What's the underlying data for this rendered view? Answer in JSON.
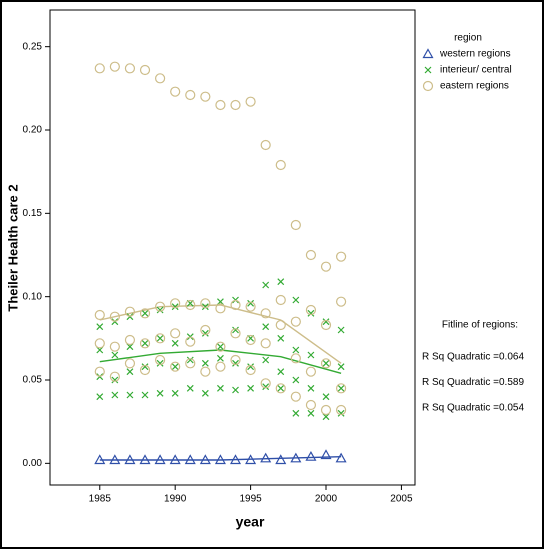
{
  "chart_data": {
    "type": "scatter",
    "x_label": "year",
    "y_label": "Theiler Health care 2",
    "xlim": [
      1981.7,
      2005.9
    ],
    "ylim": [
      -0.013,
      0.272
    ],
    "xticks": [
      1985,
      1990,
      1995,
      2000,
      2005
    ],
    "yticks": [
      {
        "value": 0,
        "label": "0.00"
      },
      {
        "value": 0.05,
        "label": "0.05"
      },
      {
        "value": 0.1,
        "label": "0.10"
      },
      {
        "value": 0.15,
        "label": "0.15"
      },
      {
        "value": 0.2,
        "label": "0.20"
      },
      {
        "value": 0.25,
        "label": "0.25"
      }
    ],
    "legend_title": "region",
    "series": [
      {
        "name": "western regions",
        "color": "#2f4fa8",
        "marker": "triangle",
        "x": [
          1985,
          1986,
          1987,
          1988,
          1989,
          1990,
          1991,
          1992,
          1993,
          1994,
          1995,
          1996,
          1997,
          1998,
          1999,
          2000,
          2001
        ],
        "values": [
          0.002,
          0.002,
          0.002,
          0.002,
          0.002,
          0.002,
          0.002,
          0.002,
          0.002,
          0.002,
          0.002,
          0.003,
          0.002,
          0.003,
          0.004,
          0.005,
          0.003
        ]
      },
      {
        "name": "interieur/ central",
        "color": "#33aa33",
        "marker": "x",
        "x": [
          1985,
          1985,
          1985,
          1985,
          1986,
          1986,
          1986,
          1986,
          1987,
          1987,
          1987,
          1987,
          1988,
          1988,
          1988,
          1988,
          1989,
          1989,
          1989,
          1989,
          1990,
          1990,
          1990,
          1990,
          1991,
          1991,
          1991,
          1991,
          1992,
          1992,
          1992,
          1992,
          1993,
          1993,
          1993,
          1993,
          1994,
          1994,
          1994,
          1994,
          1995,
          1995,
          1995,
          1995,
          1996,
          1996,
          1996,
          1996,
          1997,
          1997,
          1997,
          1997,
          1998,
          1998,
          1998,
          1998,
          1999,
          1999,
          1999,
          1999,
          2000,
          2000,
          2000,
          2000,
          2001,
          2001,
          2001,
          2001
        ],
        "values": [
          0.082,
          0.068,
          0.052,
          0.04,
          0.085,
          0.065,
          0.05,
          0.041,
          0.088,
          0.07,
          0.055,
          0.041,
          0.09,
          0.072,
          0.058,
          0.041,
          0.092,
          0.075,
          0.06,
          0.042,
          0.094,
          0.072,
          0.058,
          0.042,
          0.096,
          0.076,
          0.062,
          0.045,
          0.094,
          0.078,
          0.06,
          0.042,
          0.097,
          0.07,
          0.063,
          0.045,
          0.098,
          0.08,
          0.06,
          0.044,
          0.096,
          0.075,
          0.058,
          0.045,
          0.107,
          0.082,
          0.062,
          0.046,
          0.109,
          0.075,
          0.055,
          0.045,
          0.098,
          0.068,
          0.05,
          0.03,
          0.09,
          0.065,
          0.045,
          0.03,
          0.085,
          0.06,
          0.04,
          0.028,
          0.08,
          0.058,
          0.045,
          0.03
        ]
      },
      {
        "name": "eastern regions",
        "color": "#cdbd8a",
        "marker": "circle",
        "x": [
          1985,
          1985,
          1985,
          1985,
          1986,
          1986,
          1986,
          1986,
          1987,
          1987,
          1987,
          1987,
          1988,
          1988,
          1988,
          1988,
          1989,
          1989,
          1989,
          1989,
          1990,
          1990,
          1990,
          1990,
          1991,
          1991,
          1991,
          1991,
          1992,
          1992,
          1992,
          1992,
          1993,
          1993,
          1993,
          1993,
          1994,
          1994,
          1994,
          1994,
          1995,
          1995,
          1995,
          1995,
          1996,
          1996,
          1996,
          1996,
          1997,
          1997,
          1997,
          1997,
          1998,
          1998,
          1998,
          1998,
          1999,
          1999,
          1999,
          1999,
          2000,
          2000,
          2000,
          2000,
          2001,
          2001,
          2001,
          2001
        ],
        "values": [
          0.237,
          0.089,
          0.072,
          0.055,
          0.238,
          0.088,
          0.07,
          0.052,
          0.237,
          0.091,
          0.074,
          0.06,
          0.236,
          0.09,
          0.072,
          0.056,
          0.231,
          0.094,
          0.075,
          0.062,
          0.223,
          0.096,
          0.078,
          0.058,
          0.221,
          0.095,
          0.073,
          0.06,
          0.22,
          0.096,
          0.08,
          0.055,
          0.215,
          0.093,
          0.07,
          0.058,
          0.215,
          0.095,
          0.078,
          0.062,
          0.217,
          0.094,
          0.074,
          0.056,
          0.191,
          0.09,
          0.072,
          0.048,
          0.179,
          0.098,
          0.083,
          0.045,
          0.143,
          0.085,
          0.063,
          0.04,
          0.125,
          0.092,
          0.055,
          0.035,
          0.118,
          0.083,
          0.06,
          0.032,
          0.124,
          0.097,
          0.045,
          0.032
        ]
      }
    ],
    "fit_title": "Fitline of regions:",
    "fits": [
      {
        "label": "R Sq Quadratic =0.064",
        "color": "#2f4fa8",
        "x": [
          1985,
          1989,
          1993,
          1997,
          2001
        ],
        "values": [
          0.002,
          0.002,
          0.002,
          0.003,
          0.004
        ]
      },
      {
        "label": "R Sq Quadratic =0.589",
        "color": "#33aa33",
        "x": [
          1985,
          1989,
          1993,
          1997,
          2001
        ],
        "values": [
          0.061,
          0.066,
          0.068,
          0.064,
          0.054
        ]
      },
      {
        "label": "R Sq Quadratic =0.054",
        "color": "#cdbd8a",
        "x": [
          1985,
          1989,
          1993,
          1997,
          2001
        ],
        "values": [
          0.086,
          0.094,
          0.095,
          0.086,
          0.06
        ]
      }
    ]
  }
}
